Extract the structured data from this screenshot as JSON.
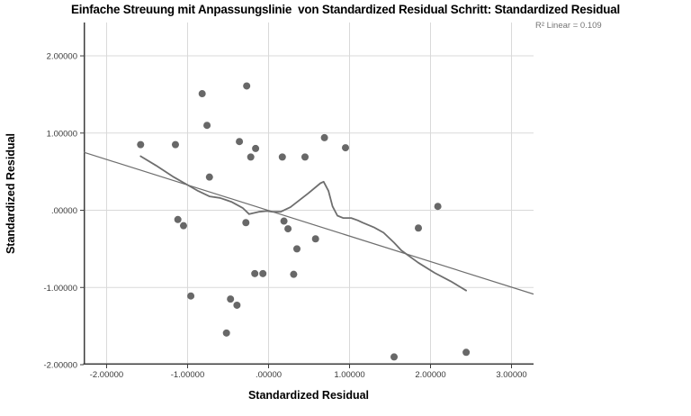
{
  "figure": {
    "title": "Einfache Streuung mit Anpassungslinie  von Standardized Residual Schritt: Standardized Residual",
    "annotation": "R² Linear = 0.109",
    "x_axis_label": "Standardized Residual",
    "y_axis_label": "Standardized Residual"
  },
  "colors": {
    "grid": "#d9d9d9",
    "frame": "#3d3d3d",
    "line": "#6e6e6e",
    "point": "#686868",
    "tick_text": "#3a3a3a",
    "annotation_text": "#757575"
  },
  "chart_data": {
    "type": "scatter",
    "title": "Einfache Streuung mit Anpassungslinie  von Standardized Residual Schritt: Standardized Residual",
    "xlabel": "Standardized Residual",
    "ylabel": "Standardized Residual",
    "annotation": "R² Linear = 0.109",
    "r_squared": 0.109,
    "grid": true,
    "legend_position": "none",
    "xlim": [
      -2.283,
      3.272
    ],
    "ylim": [
      -2.0,
      2.432
    ],
    "xticks": {
      "values": [
        -2,
        -1,
        0,
        1,
        2,
        3
      ],
      "labels": [
        "-2.00000",
        "-1.00000",
        ".00000",
        "1.00000",
        "2.00000",
        "3.00000"
      ]
    },
    "yticks": {
      "values": [
        2,
        1,
        0,
        -1,
        -2
      ],
      "labels": [
        "2.00000",
        "1.00000",
        ".00000",
        "-1.00000",
        "-2.00000"
      ]
    },
    "points": [
      [
        -1.58,
        0.85
      ],
      [
        -1.15,
        0.85
      ],
      [
        -0.82,
        1.51
      ],
      [
        -0.27,
        1.61
      ],
      [
        -0.76,
        1.1
      ],
      [
        -0.36,
        0.89
      ],
      [
        -0.16,
        0.8
      ],
      [
        -0.22,
        0.69
      ],
      [
        0.17,
        0.69
      ],
      [
        0.45,
        0.69
      ],
      [
        0.69,
        0.94
      ],
      [
        0.95,
        0.81
      ],
      [
        -0.73,
        0.43
      ],
      [
        2.09,
        0.05
      ],
      [
        1.85,
        -0.23
      ],
      [
        0.19,
        -0.14
      ],
      [
        0.24,
        -0.24
      ],
      [
        0.58,
        -0.37
      ],
      [
        0.35,
        -0.5
      ],
      [
        0.31,
        -0.83
      ],
      [
        -1.12,
        -0.12
      ],
      [
        -1.05,
        -0.2
      ],
      [
        -0.28,
        -0.16
      ],
      [
        -0.17,
        -0.82
      ],
      [
        -0.07,
        -0.82
      ],
      [
        -0.96,
        -1.11
      ],
      [
        -0.47,
        -1.15
      ],
      [
        -0.39,
        -1.23
      ],
      [
        -0.52,
        -1.59
      ],
      [
        1.55,
        -1.9
      ],
      [
        2.44,
        -1.84
      ]
    ],
    "fit_line": {
      "x1": -2.283,
      "y1": 0.752,
      "x2": 3.272,
      "y2": -1.086
    },
    "loess_line": [
      [
        -1.58,
        0.7
      ],
      [
        -1.39,
        0.58
      ],
      [
        -1.17,
        0.43
      ],
      [
        -1.02,
        0.34
      ],
      [
        -0.87,
        0.25
      ],
      [
        -0.73,
        0.18
      ],
      [
        -0.6,
        0.16
      ],
      [
        -0.46,
        0.11
      ],
      [
        -0.32,
        0.03
      ],
      [
        -0.24,
        -0.05
      ],
      [
        -0.12,
        -0.02
      ],
      [
        -0.02,
        -0.01
      ],
      [
        0.05,
        -0.02
      ],
      [
        0.15,
        -0.02
      ],
      [
        0.27,
        0.04
      ],
      [
        0.49,
        0.22
      ],
      [
        0.64,
        0.35
      ],
      [
        0.68,
        0.37
      ],
      [
        0.74,
        0.25
      ],
      [
        0.79,
        0.05
      ],
      [
        0.85,
        -0.07
      ],
      [
        0.92,
        -0.1
      ],
      [
        1.02,
        -0.1
      ],
      [
        1.1,
        -0.13
      ],
      [
        1.16,
        -0.16
      ],
      [
        1.3,
        -0.22
      ],
      [
        1.42,
        -0.29
      ],
      [
        1.55,
        -0.42
      ],
      [
        1.64,
        -0.52
      ],
      [
        1.85,
        -0.68
      ],
      [
        2.05,
        -0.81
      ],
      [
        2.25,
        -0.92
      ],
      [
        2.44,
        -1.04
      ]
    ]
  }
}
